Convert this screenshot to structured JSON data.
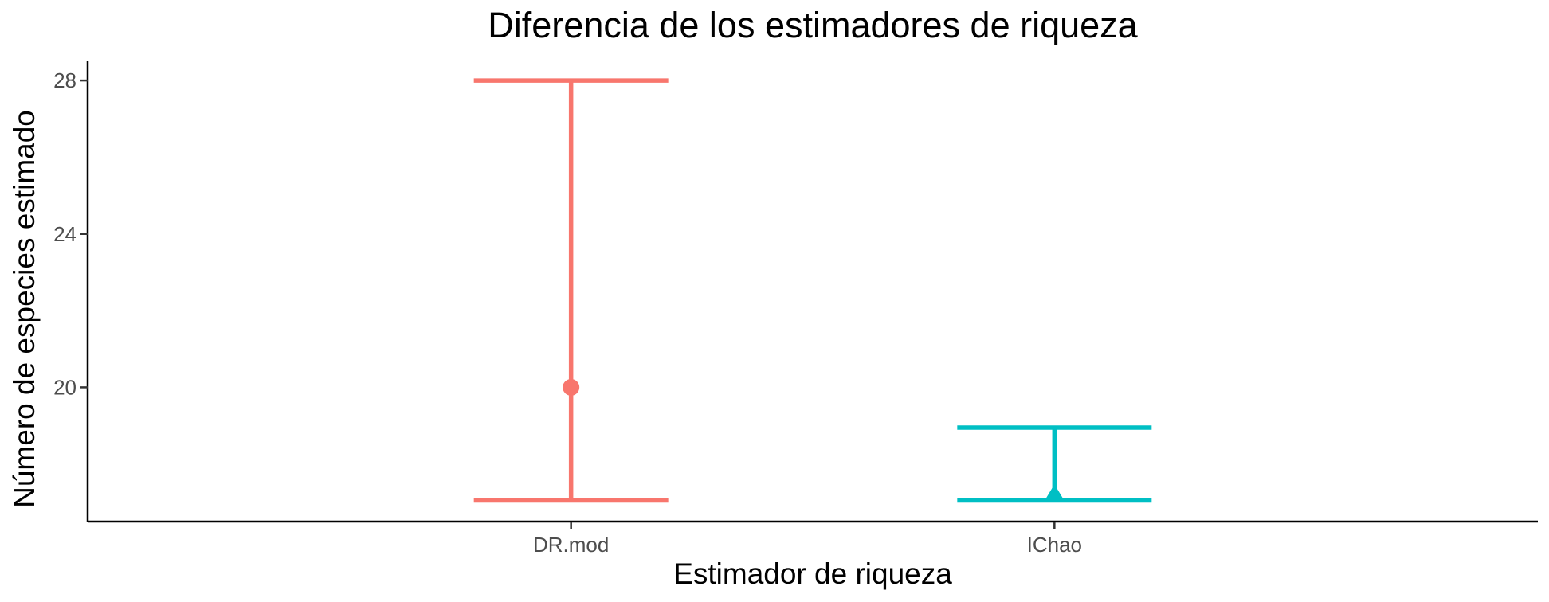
{
  "chart_data": {
    "type": "errorbar",
    "title": "Diferencia de los estimadores de riqueza",
    "xlabel": "Estimador de riqueza",
    "ylabel": "Número de especies estimado",
    "categories": [
      "DR.mod",
      "IChao"
    ],
    "yticks": [
      20,
      24,
      28
    ],
    "ylim": [
      16.5,
      28.5
    ],
    "grid": false,
    "legend": "none",
    "series": [
      {
        "category": "DR.mod",
        "estimate": 20.0,
        "lower": 17.05,
        "upper": 28.0,
        "shape": "circle",
        "color": "#F8766D"
      },
      {
        "category": "IChao",
        "estimate": 17.2,
        "lower": 17.05,
        "upper": 18.95,
        "shape": "triangle",
        "color": "#00BFC4"
      }
    ]
  }
}
